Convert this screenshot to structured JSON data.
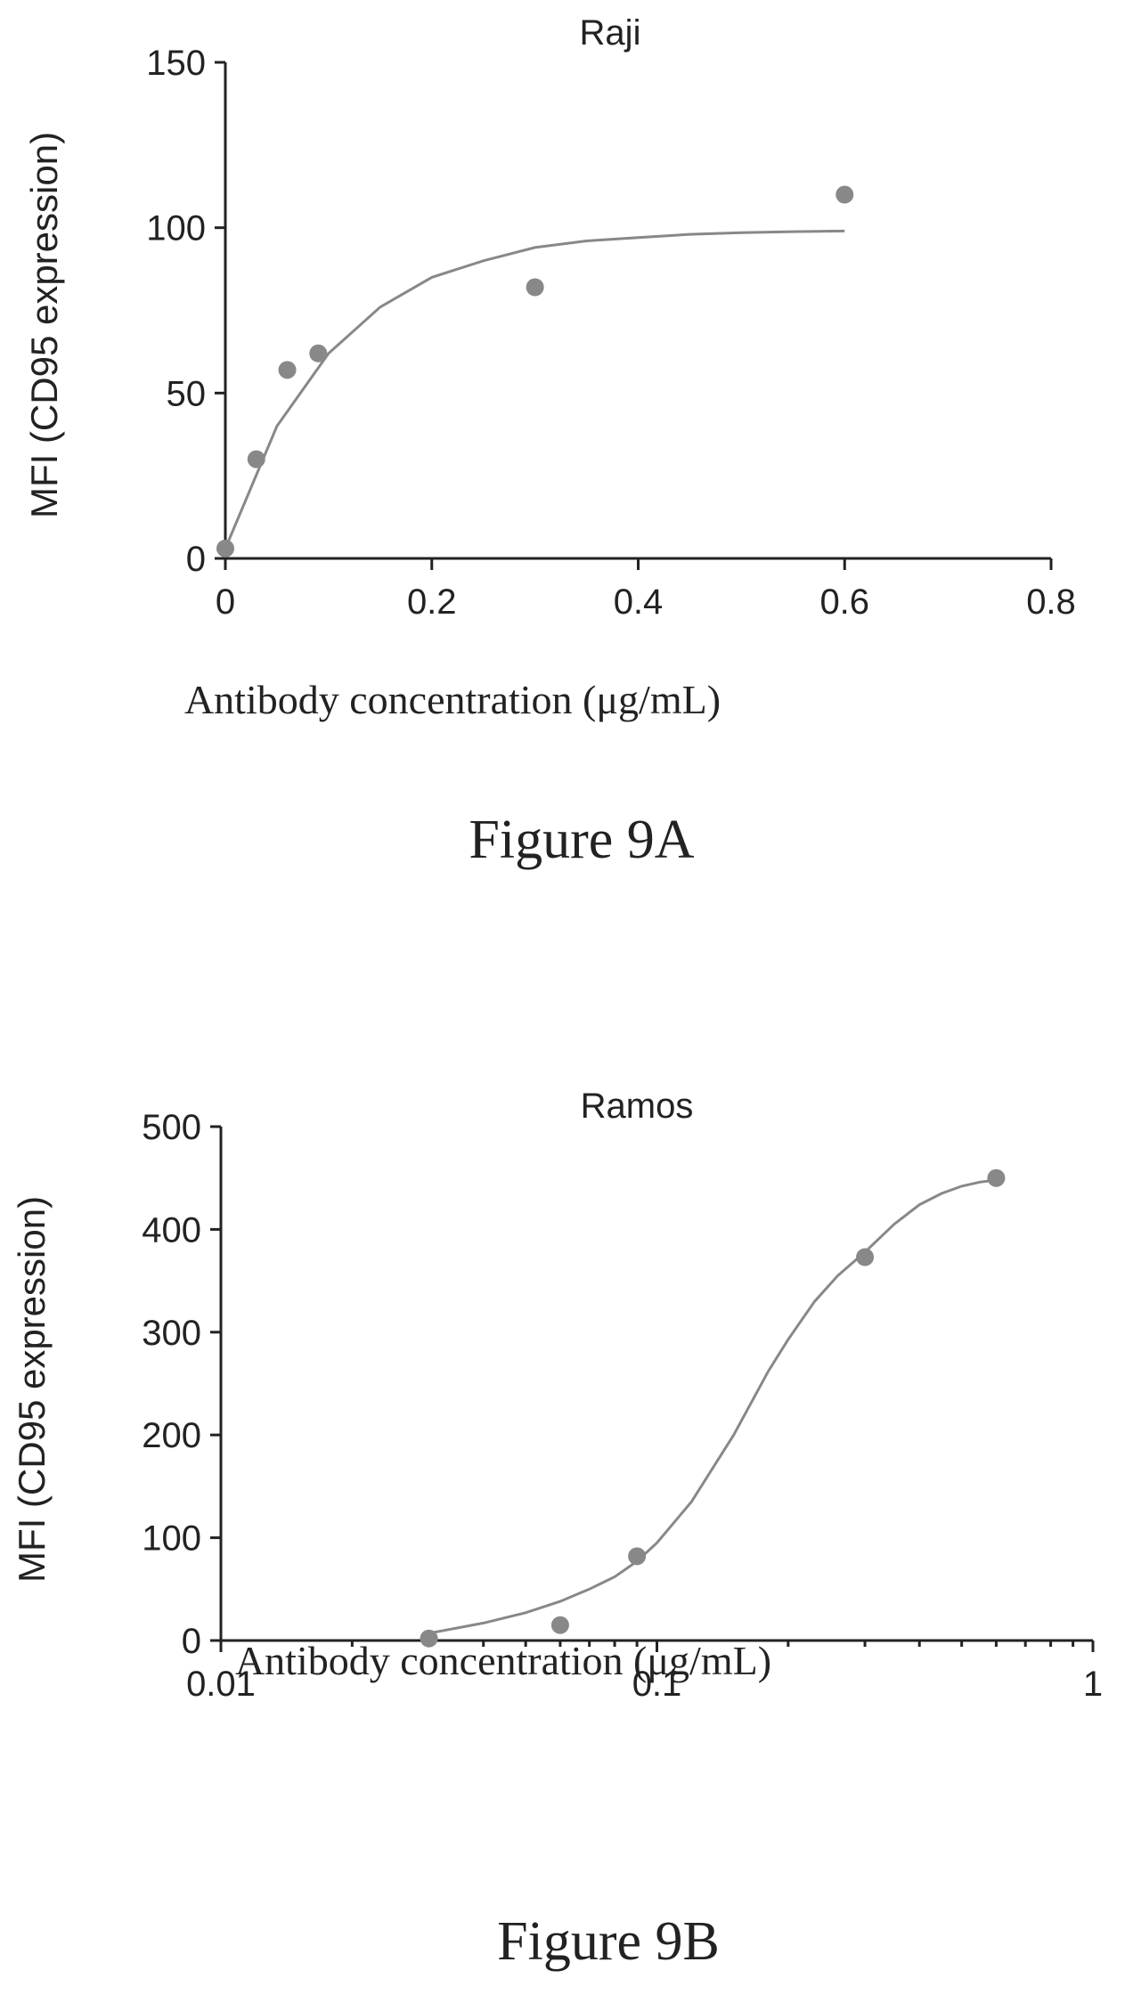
{
  "chart_data": [
    {
      "type": "scatter",
      "title": "Raji",
      "xlabel": "Antibody concentration  (μg/mL)",
      "ylabel": "MFI (CD95 expression)",
      "xlim": [
        0,
        0.8
      ],
      "ylim": [
        0,
        150
      ],
      "xticks": [
        "0",
        "0.2",
        "0.4",
        "0.6",
        "0.8"
      ],
      "yticks": [
        "0",
        "50",
        "100",
        "150"
      ],
      "x_scale": "linear",
      "points": {
        "x": [
          0,
          0.03,
          0.06,
          0.09,
          0.3,
          0.6
        ],
        "y": [
          3,
          30,
          57,
          62,
          82,
          110
        ]
      },
      "fit_curve": {
        "x": [
          0,
          0.05,
          0.1,
          0.15,
          0.2,
          0.25,
          0.3,
          0.35,
          0.4,
          0.45,
          0.5,
          0.55,
          0.6
        ],
        "y": [
          3,
          40,
          62,
          76,
          85,
          90,
          94,
          96,
          97,
          98,
          98.5,
          98.8,
          99
        ]
      },
      "caption": "Figure 9A"
    },
    {
      "type": "scatter",
      "title": "Ramos",
      "xlabel": "Antibody concentration  (μg/mL)",
      "ylabel": "MFI (CD95 expression)",
      "xlim": [
        0.01,
        1
      ],
      "ylim": [
        0,
        500
      ],
      "xticks": [
        "0.01",
        "0.1",
        "1"
      ],
      "yticks": [
        "0",
        "100",
        "200",
        "300",
        "400",
        "500"
      ],
      "x_scale": "log",
      "points": {
        "x": [
          0.03,
          0.06,
          0.09,
          0.3,
          0.6
        ],
        "y": [
          2,
          15,
          82,
          373,
          450
        ]
      },
      "fit_curve": {
        "x": [
          0.03,
          0.04,
          0.05,
          0.06,
          0.07,
          0.08,
          0.09,
          0.1,
          0.12,
          0.15,
          0.18,
          0.2,
          0.23,
          0.26,
          0.3,
          0.35,
          0.4,
          0.45,
          0.5,
          0.55,
          0.6
        ],
        "y": [
          7,
          17,
          27,
          38,
          50,
          62,
          77,
          95,
          135,
          200,
          262,
          293,
          330,
          355,
          378,
          405,
          424,
          435,
          442,
          446,
          448
        ]
      },
      "caption": "Figure 9B"
    }
  ]
}
